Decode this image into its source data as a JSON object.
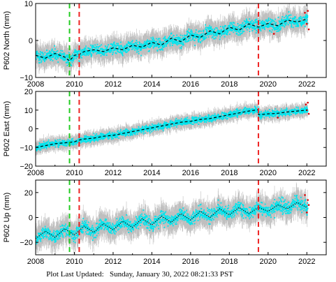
{
  "footer": {
    "label": "Plot Last Updated:",
    "date": "Sunday, January 30, 2022 08:21:33 PST"
  },
  "colors": {
    "data": "#00e5ee",
    "error_bars": "#b4b4b4",
    "model": "#000000",
    "outliers": "#dd0000",
    "event_green": "#22cc22",
    "event_red": "#ee2222"
  },
  "chart_data": [
    {
      "type": "scatter",
      "ylabel": "P602 North (mm)",
      "xlim": [
        2008,
        2023
      ],
      "ylim": [
        -10,
        10
      ],
      "x_ticks": [
        2008,
        2010,
        2012,
        2014,
        2016,
        2018,
        2020,
        2022
      ],
      "x_tick_labels": [
        "2008",
        "2010",
        "2012",
        "2014",
        "2016",
        "2018",
        "2020",
        "2022"
      ],
      "y_ticks": [
        -10,
        0,
        10
      ],
      "y_tick_labels": [
        "−10",
        "0",
        "10"
      ],
      "vertical_lines": [
        {
          "x": 2009.75,
          "color": "green",
          "style": "dashed"
        },
        {
          "x": 2010.25,
          "color": "red",
          "style": "dashed"
        },
        {
          "x": 2019.5,
          "color": "red",
          "style": "dashed"
        }
      ],
      "model_trend": {
        "style": "dashed",
        "x": [
          2008.0,
          2008.5,
          2009.0,
          2009.5,
          2009.75,
          2010.0,
          2010.25,
          2010.5,
          2011.0,
          2011.5,
          2012.0,
          2012.5,
          2013.0,
          2013.5,
          2014.0,
          2014.5,
          2015.0,
          2015.5,
          2016.0,
          2016.5,
          2017.0,
          2017.5,
          2018.0,
          2018.5,
          2019.0,
          2019.5,
          2020.0,
          2020.5,
          2021.0,
          2021.5,
          2022.0
        ],
        "y": [
          -4.0,
          -4.8,
          -3.5,
          -4.5,
          -5.5,
          -4.0,
          -3.8,
          -3.0,
          -2.5,
          -3.0,
          -2.0,
          -2.5,
          -1.3,
          -1.8,
          -0.5,
          -1.2,
          0.6,
          -0.3,
          1.5,
          0.8,
          2.6,
          1.8,
          3.6,
          2.8,
          4.5,
          3.6,
          4.6,
          4.0,
          5.5,
          5.0,
          5.8
        ]
      },
      "scatter_noise_std": 1.4,
      "outliers_x": [
        2020.3,
        2021.9,
        2022.0,
        2022.05,
        2022.1
      ],
      "outliers_y": [
        1.8,
        7.5,
        4.5,
        8.0,
        3.0
      ]
    },
    {
      "type": "scatter",
      "ylabel": "P602 East (mm)",
      "xlim": [
        2008,
        2023
      ],
      "ylim": [
        -20,
        20
      ],
      "x_ticks": [
        2008,
        2010,
        2012,
        2014,
        2016,
        2018,
        2020,
        2022
      ],
      "x_tick_labels": [
        "2008",
        "2010",
        "2012",
        "2014",
        "2016",
        "2018",
        "2020",
        "2022"
      ],
      "y_ticks": [
        -20,
        -10,
        0,
        10,
        20
      ],
      "y_tick_labels": [
        "−20",
        "−10",
        "0",
        "10",
        "20"
      ],
      "vertical_lines": [
        {
          "x": 2009.75,
          "color": "green",
          "style": "dashed"
        },
        {
          "x": 2010.25,
          "color": "red",
          "style": "dashed"
        },
        {
          "x": 2019.5,
          "color": "red",
          "style": "dashed"
        }
      ],
      "model_trend": {
        "style": "dashed",
        "x": [
          2008.0,
          2008.5,
          2009.0,
          2009.5,
          2010.0,
          2010.25,
          2010.5,
          2011.0,
          2011.5,
          2012.0,
          2012.5,
          2013.0,
          2013.5,
          2014.0,
          2014.5,
          2015.0,
          2015.5,
          2016.0,
          2016.5,
          2017.0,
          2017.5,
          2018.0,
          2018.5,
          2019.0,
          2019.49,
          2019.51,
          2020.0,
          2020.5,
          2021.0,
          2021.5,
          2022.0
        ],
        "y": [
          -10.0,
          -9.0,
          -8.0,
          -7.5,
          -7.0,
          -6.0,
          -5.5,
          -5.0,
          -4.0,
          -3.5,
          -2.5,
          -1.5,
          -0.5,
          0.5,
          1.5,
          2.5,
          3.5,
          4.0,
          5.0,
          5.5,
          6.5,
          7.5,
          8.5,
          9.5,
          10.2,
          7.5,
          8.0,
          8.3,
          9.0,
          9.5,
          10.0
        ]
      },
      "scatter_noise_std": 1.6,
      "outliers_x": [
        2020.5,
        2021.95,
        2022.0,
        2022.05,
        2022.1
      ],
      "outliers_y": [
        6.0,
        13.0,
        10.0,
        14.0,
        8.0
      ]
    },
    {
      "type": "scatter",
      "ylabel": "P602 Up (mm)",
      "xlim": [
        2008,
        2023
      ],
      "ylim": [
        -30,
        30
      ],
      "x_ticks": [
        2008,
        2010,
        2012,
        2014,
        2016,
        2018,
        2020,
        2022
      ],
      "x_tick_labels": [
        "2008",
        "2010",
        "2012",
        "2014",
        "2016",
        "2018",
        "2020",
        "2022"
      ],
      "y_ticks": [
        -20,
        0,
        20
      ],
      "y_tick_labels": [
        "−20",
        "0",
        "20"
      ],
      "vertical_lines": [
        {
          "x": 2009.75,
          "color": "green",
          "style": "dashed"
        },
        {
          "x": 2010.25,
          "color": "red",
          "style": "dashed"
        },
        {
          "x": 2019.5,
          "color": "red",
          "style": "dashed"
        }
      ],
      "model_trend": {
        "style": "dotted",
        "x": [
          2008.0,
          2008.5,
          2009.0,
          2009.5,
          2010.0,
          2010.5,
          2011.0,
          2011.5,
          2012.0,
          2012.5,
          2013.0,
          2013.5,
          2014.0,
          2014.5,
          2015.0,
          2015.5,
          2016.0,
          2016.5,
          2017.0,
          2017.5,
          2018.0,
          2018.5,
          2019.0,
          2019.5,
          2020.0,
          2020.5,
          2021.0,
          2021.5,
          2022.0
        ],
        "y": [
          -17.0,
          -11.0,
          -16.0,
          -9.0,
          -14.0,
          -7.0,
          -12.0,
          -5.0,
          -10.0,
          -3.0,
          -8.0,
          -1.0,
          -6.0,
          1.0,
          -4.0,
          3.0,
          -2.0,
          5.0,
          0.0,
          7.0,
          2.0,
          8.0,
          3.0,
          8.0,
          5.0,
          10.0,
          7.0,
          12.0,
          8.0
        ]
      },
      "scatter_noise_std": 4.5,
      "outliers_x": [
        2021.9,
        2022.0,
        2022.05,
        2022.1
      ],
      "outliers_y": [
        18.0,
        4.0,
        14.0,
        10.0
      ]
    }
  ]
}
